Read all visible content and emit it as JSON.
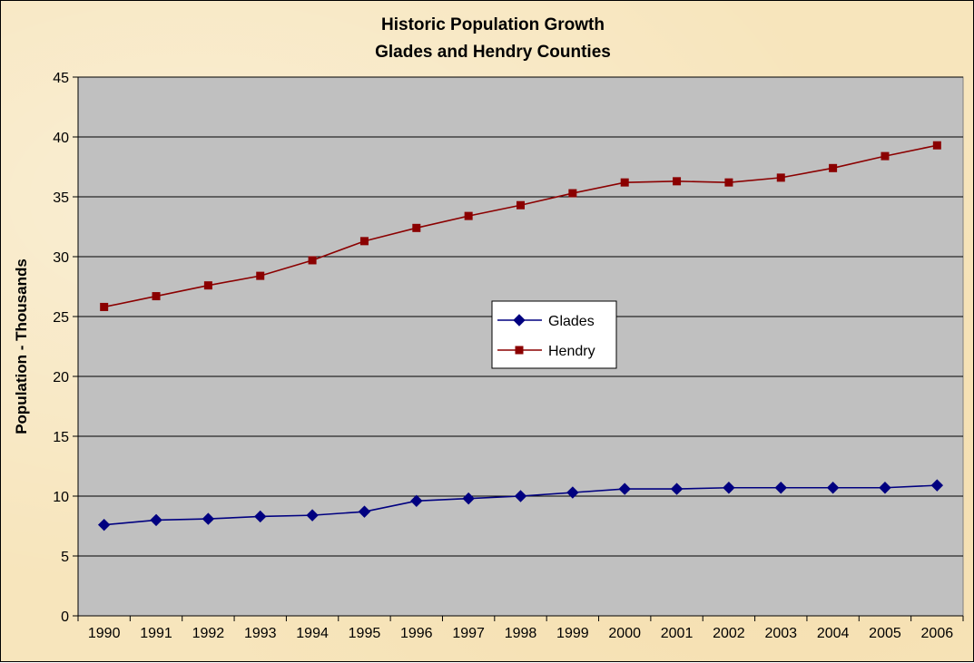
{
  "chart_data": {
    "type": "line",
    "title": "Historic Population Growth",
    "subtitle": "Glades and Hendry Counties",
    "xlabel": "",
    "ylabel": "Population - Thousands",
    "categories": [
      "1990",
      "1991",
      "1992",
      "1993",
      "1994",
      "1995",
      "1996",
      "1997",
      "1998",
      "1999",
      "2000",
      "2001",
      "2002",
      "2003",
      "2004",
      "2005",
      "2006"
    ],
    "ylim": [
      0,
      45
    ],
    "yticks": [
      0,
      5,
      10,
      15,
      20,
      25,
      30,
      35,
      40,
      45
    ],
    "grid": true,
    "legend_position": "center",
    "series": [
      {
        "name": "Glades",
        "color": "#000080",
        "marker": "diamond",
        "values": [
          7.6,
          8.0,
          8.1,
          8.3,
          8.4,
          8.7,
          9.6,
          9.8,
          10.0,
          10.3,
          10.6,
          10.6,
          10.7,
          10.7,
          10.7,
          10.7,
          10.9
        ]
      },
      {
        "name": "Hendry",
        "color": "#8b0000",
        "marker": "square",
        "values": [
          25.8,
          26.7,
          27.6,
          28.4,
          29.7,
          31.3,
          32.4,
          33.4,
          34.3,
          35.3,
          36.2,
          36.3,
          36.2,
          36.6,
          37.4,
          38.4,
          39.3
        ]
      }
    ],
    "colors": {
      "plot_background": "#c0c0c0",
      "page_background": "#f7e5bc",
      "gridline": "#000000"
    }
  }
}
